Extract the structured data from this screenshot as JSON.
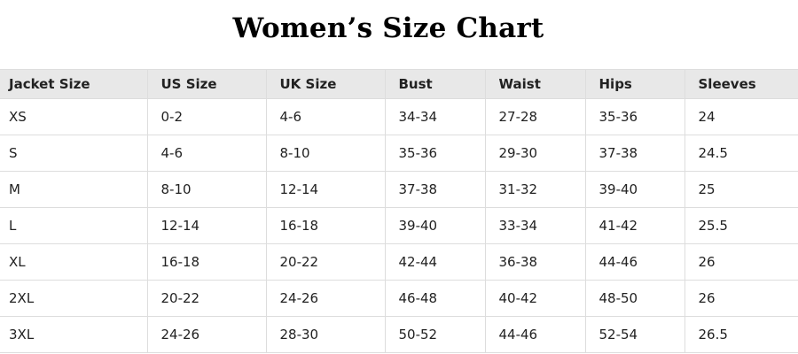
{
  "title": "Women’s Size Chart",
  "table": {
    "headers": [
      "Jacket Size",
      "US Size",
      "UK Size",
      "Bust",
      "Waist",
      "Hips",
      "Sleeves"
    ],
    "rows": [
      [
        "XS",
        "0-2",
        "4-6",
        "34-34",
        "27-28",
        "35-36",
        "24"
      ],
      [
        "S",
        "4-6",
        "8-10",
        "35-36",
        "29-30",
        "37-38",
        "24.5"
      ],
      [
        "M",
        "8-10",
        "12-14",
        "37-38",
        "31-32",
        "39-40",
        "25"
      ],
      [
        "L",
        "12-14",
        "16-18",
        "39-40",
        "33-34",
        "41-42",
        "25.5"
      ],
      [
        "XL",
        "16-18",
        "20-22",
        "42-44",
        "36-38",
        "44-46",
        "26"
      ],
      [
        "2XL",
        "20-22",
        "24-26",
        "46-48",
        "40-42",
        "48-50",
        "26"
      ],
      [
        "3XL",
        "24-26",
        "28-30",
        "50-52",
        "44-46",
        "52-54",
        "26.5"
      ]
    ]
  },
  "colors": {
    "header_bg": "#e8e8e8",
    "border": "#dddddd",
    "text": "#222222"
  }
}
